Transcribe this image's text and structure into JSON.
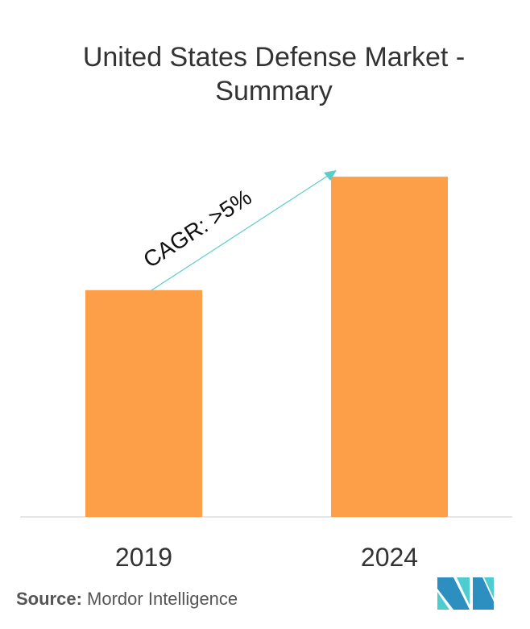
{
  "chart_data": {
    "type": "bar",
    "title": "United States Defense Market - Summary",
    "categories": [
      "2019",
      "2024"
    ],
    "values": [
      1.0,
      1.5
    ],
    "ylim": [
      0,
      1.6
    ],
    "grid": false,
    "xlabel": "",
    "ylabel": "",
    "bar_color": "#FD9F48",
    "annotation": {
      "text": "CAGR: >5%",
      "arrow_color": "#5BCBCB"
    }
  },
  "source": {
    "label": "Source:",
    "text": "Mordor Intelligence"
  },
  "logo": {
    "colors": [
      "#2C8FC0",
      "#4ECDD0"
    ]
  }
}
